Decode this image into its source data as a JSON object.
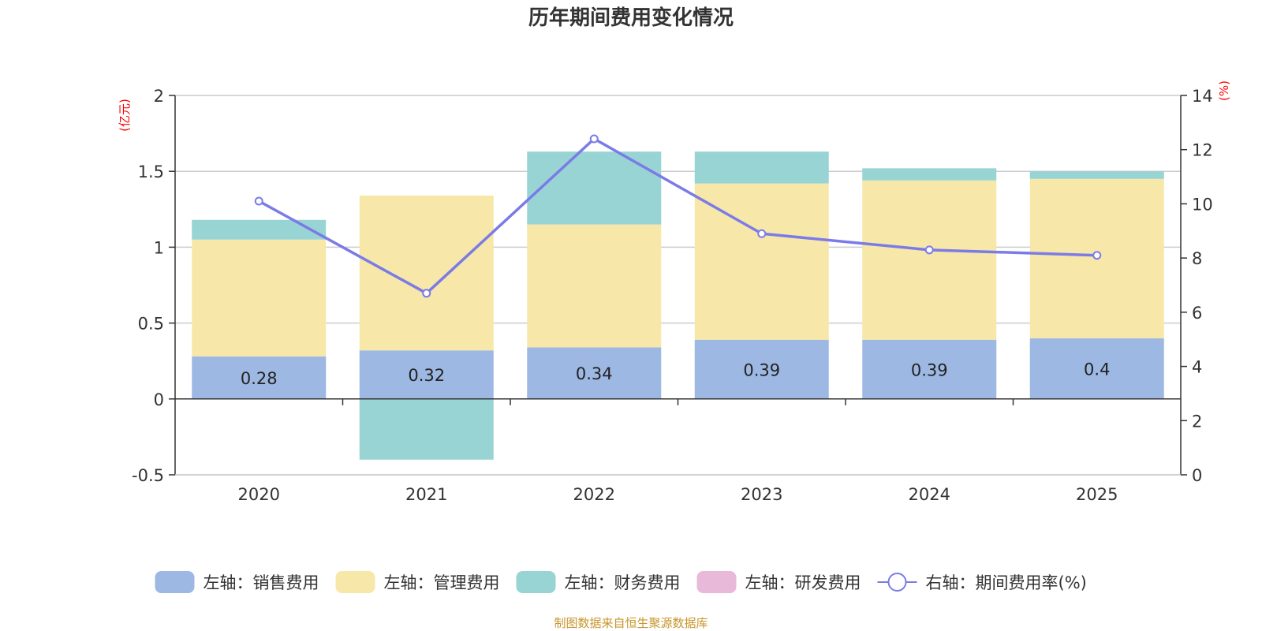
{
  "chart_data": {
    "type": "bar",
    "title": "历年期间费用变化情况",
    "categories": [
      "2020",
      "2021",
      "2022",
      "2023",
      "2024",
      "2025"
    ],
    "left_axis": {
      "unit": "(亿元)",
      "range": [
        -0.5,
        2
      ],
      "ticks": [
        "-0.5",
        "0",
        "0.5",
        "1",
        "1.5",
        "2"
      ]
    },
    "right_axis": {
      "unit": "(%)",
      "range": [
        0,
        14
      ],
      "ticks": [
        "0",
        "2",
        "4",
        "6",
        "8",
        "10",
        "12",
        "14"
      ]
    },
    "series": [
      {
        "name": "销售费用",
        "legend": "左轴：销售费用",
        "axis": "left",
        "kind": "bar",
        "stacked": true,
        "color": "#9db8e2",
        "values": [
          0.28,
          0.32,
          0.34,
          0.39,
          0.39,
          0.4
        ],
        "labels": [
          "0.28",
          "0.32",
          "0.34",
          "0.39",
          "0.39",
          "0.4"
        ]
      },
      {
        "name": "管理费用",
        "legend": "左轴：管理费用",
        "axis": "left",
        "kind": "bar",
        "stacked": true,
        "color": "#f7e7a8",
        "values": [
          0.77,
          1.02,
          0.81,
          1.03,
          1.05,
          1.05
        ]
      },
      {
        "name": "财务费用",
        "legend": "左轴：财务费用",
        "axis": "left",
        "kind": "bar",
        "stacked": true,
        "color": "#99d4d4",
        "values": [
          0.13,
          -0.4,
          0.48,
          0.21,
          0.08,
          0.05
        ]
      },
      {
        "name": "研发费用",
        "legend": "左轴：研发费用",
        "axis": "left",
        "kind": "bar",
        "stacked": true,
        "color": "#e8b9d9",
        "values": [
          0,
          0,
          0,
          0,
          0,
          0
        ]
      },
      {
        "name": "期间费用率(%)",
        "legend": "右轴：期间费用率(%)",
        "axis": "right",
        "kind": "line",
        "color": "#7b7be8",
        "values": [
          10.1,
          6.7,
          12.4,
          8.9,
          8.3,
          8.1
        ]
      }
    ],
    "legend_position": "bottom",
    "grid": true
  },
  "source_text": "制图数据来自恒生聚源数据库",
  "colors": {
    "unit_label": "#ff0000",
    "source_text": "#c8962d",
    "grid": "#cccccc",
    "axis": "#333333"
  }
}
